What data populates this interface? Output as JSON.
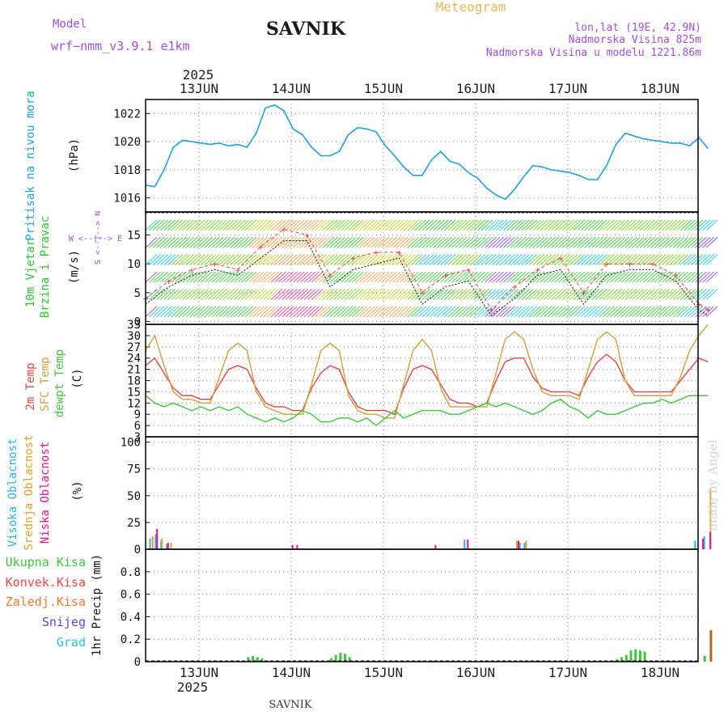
{
  "header": {
    "model_label": "Model",
    "model_name": "wrf−nmm_v3.9.1  e1km",
    "station": "SAVNIK",
    "product": "Meteogram",
    "lonlat": "lon,lat (19E, 42.9N)",
    "elevation": "Nadmorska Visina 825m",
    "model_elevation": "Nadmorska Visina u modelu 1221.86m",
    "credit": "made by Angel",
    "footer_station": "SAVNIK"
  },
  "time_axis": {
    "year": "2025",
    "days": [
      "13JUN",
      "14JUN",
      "15JUN",
      "16JUN",
      "17JUN",
      "18JUN"
    ]
  },
  "colors": {
    "pressure": "#1ea0dc",
    "temp2m": "#e64646",
    "sfc": "#d2a03c",
    "dewpt": "#3cc83c",
    "high_cloud": "#28b4e6",
    "mid_cloud": "#e6a028",
    "low_cloud": "#e6148c",
    "total_precip": "#3cc83c",
    "conv_precip": "#f04646",
    "frozen": "#f07832",
    "snow": "#5a46e6",
    "graupel": "#28c8c8",
    "wind_label": "#2ec42e",
    "wind_dir_label": "#a050dc"
  },
  "chart_data": [
    {
      "panel": "pressure",
      "type": "line",
      "ylabel_main": "Pritisak na nivou mora",
      "unit": "(hPa)",
      "ylim": [
        1015,
        1023
      ],
      "yticks": [
        1016,
        1018,
        1020,
        1022
      ],
      "grid": true,
      "series": [
        {
          "x": [
            0,
            0.1,
            0.2,
            0.3,
            0.4,
            0.5,
            0.6,
            0.7,
            0.8,
            0.9,
            1.0,
            1.1,
            1.2,
            1.3,
            1.4,
            1.5,
            1.6,
            1.7,
            1.8,
            1.9,
            2.0,
            2.1,
            2.2,
            2.3,
            2.4,
            2.5,
            2.6,
            2.7,
            2.8,
            2.9,
            3.0,
            3.1,
            3.2,
            3.3,
            3.4,
            3.5,
            3.6,
            3.7,
            3.8,
            3.9,
            4.0,
            4.1,
            4.2,
            4.3,
            4.4,
            4.5,
            4.6,
            4.7,
            4.8,
            4.9,
            5.0,
            5.1,
            5.2,
            5.3,
            5.4,
            5.5,
            5.6,
            5.7,
            5.8,
            5.9,
            6.0,
            6.1
          ],
          "values": [
            1016.9,
            1016.8,
            1018.0,
            1019.6,
            1020.1,
            1020.0,
            1019.9,
            1019.8,
            1019.9,
            1019.7,
            1019.8,
            1019.6,
            1020.6,
            1022.4,
            1022.6,
            1022.2,
            1020.9,
            1020.5,
            1019.6,
            1019.0,
            1019.0,
            1019.3,
            1020.5,
            1021.0,
            1020.9,
            1020.7,
            1019.7,
            1019.0,
            1018.2,
            1017.6,
            1017.6,
            1018.7,
            1019.3,
            1018.6,
            1018.4,
            1017.8,
            1017.4,
            1016.7,
            1016.2,
            1015.9,
            1016.6,
            1017.5,
            1018.3,
            1018.2,
            1018.0,
            1017.9,
            1017.8,
            1017.6,
            1017.3,
            1017.3,
            1018.3,
            1019.8,
            1020.6,
            1020.4,
            1020.2,
            1020.1,
            1020.0,
            1019.9,
            1019.9,
            1019.7,
            1020.3,
            1019.5
          ]
        }
      ]
    },
    {
      "panel": "wind",
      "type": "line",
      "ylabel_main": "10m Vjetar",
      "ylabel_sub": "Brzina i Pravac",
      "unit": "(m/s)",
      "direction_key": "W  <--|-->  E",
      "direction_key_vertical": "S <--|--> N",
      "ylim": [
        -0.5,
        19
      ],
      "yticks": [
        0,
        5,
        10,
        15
      ],
      "grid": true,
      "series": [
        {
          "name": "wind speed",
          "x": [
            0,
            0.25,
            0.5,
            0.75,
            1.0,
            1.25,
            1.5,
            1.75,
            2.0,
            2.25,
            2.5,
            2.75,
            3.0,
            3.25,
            3.5,
            3.75,
            4.0,
            4.25,
            4.5,
            4.75,
            5.0,
            5.25,
            5.5,
            5.75,
            6.0,
            6.1
          ],
          "values": [
            3,
            6,
            8,
            9,
            8,
            11,
            14,
            14,
            6,
            9,
            10,
            11,
            3,
            6,
            7,
            1,
            4,
            8,
            9,
            3,
            8,
            9,
            9,
            7,
            2,
            1
          ]
        },
        {
          "name": "wind gust",
          "x": [
            0,
            0.25,
            0.5,
            0.75,
            1.0,
            1.25,
            1.5,
            1.75,
            2.0,
            2.25,
            2.5,
            2.75,
            3.0,
            3.25,
            3.5,
            3.75,
            4.0,
            4.25,
            4.5,
            4.75,
            5.0,
            5.25,
            5.5,
            5.75,
            6.0,
            6.1
          ],
          "values": [
            4,
            7,
            9,
            10,
            9,
            13,
            16,
            15,
            8,
            11,
            12,
            12,
            5,
            8,
            9,
            2,
            6,
            9,
            11,
            5,
            10,
            10,
            10,
            8,
            3,
            2
          ]
        }
      ]
    },
    {
      "panel": "temperature",
      "type": "line",
      "ylabels": [
        "2m Temp",
        "SFC Temp",
        "dewpt Temp"
      ],
      "unit": "(C)",
      "ylim": [
        3,
        33
      ],
      "yticks": [
        3,
        6,
        9,
        12,
        15,
        18,
        21,
        24,
        27,
        30,
        33
      ],
      "grid": true,
      "series": [
        {
          "name": "2m Temp",
          "x": [
            0,
            0.1,
            0.2,
            0.3,
            0.4,
            0.5,
            0.6,
            0.7,
            0.8,
            0.9,
            1.0,
            1.1,
            1.2,
            1.3,
            1.4,
            1.5,
            1.6,
            1.7,
            1.8,
            1.9,
            2.0,
            2.1,
            2.2,
            2.3,
            2.4,
            2.5,
            2.6,
            2.7,
            2.8,
            2.9,
            3.0,
            3.1,
            3.2,
            3.3,
            3.4,
            3.5,
            3.6,
            3.7,
            3.8,
            3.9,
            4.0,
            4.1,
            4.2,
            4.3,
            4.4,
            4.5,
            4.6,
            4.7,
            4.8,
            4.9,
            5.0,
            5.1,
            5.2,
            5.3,
            5.4,
            5.5,
            5.6,
            5.7,
            5.8,
            5.9,
            6.0,
            6.1
          ],
          "values": [
            22,
            24,
            20,
            16,
            14,
            14,
            13,
            13,
            17,
            21,
            22,
            21,
            16,
            12,
            11,
            11,
            10,
            10,
            16,
            20,
            22,
            21,
            15,
            11,
            10,
            10,
            10,
            9,
            16,
            21,
            22,
            21,
            17,
            13,
            12,
            12,
            11,
            12,
            18,
            23,
            24,
            24,
            19,
            16,
            15,
            15,
            15,
            14,
            19,
            23,
            25,
            23,
            18,
            15,
            15,
            15,
            15,
            15,
            18,
            21,
            24,
            23
          ]
        },
        {
          "name": "SFC Temp",
          "x": [
            0,
            0.1,
            0.2,
            0.3,
            0.4,
            0.5,
            0.6,
            0.7,
            0.8,
            0.9,
            1.0,
            1.1,
            1.2,
            1.3,
            1.4,
            1.5,
            1.6,
            1.7,
            1.8,
            1.9,
            2.0,
            2.1,
            2.2,
            2.3,
            2.4,
            2.5,
            2.6,
            2.7,
            2.8,
            2.9,
            3.0,
            3.1,
            3.2,
            3.3,
            3.4,
            3.5,
            3.6,
            3.7,
            3.8,
            3.9,
            4.0,
            4.1,
            4.2,
            4.3,
            4.4,
            4.5,
            4.6,
            4.7,
            4.8,
            4.9,
            5.0,
            5.1,
            5.2,
            5.3,
            5.4,
            5.5,
            5.6,
            5.7,
            5.8,
            5.9,
            6.0,
            6.1
          ],
          "values": [
            26,
            30,
            22,
            15,
            13,
            13,
            12,
            12,
            19,
            26,
            28,
            26,
            15,
            11,
            10,
            9,
            9,
            9,
            17,
            26,
            28,
            26,
            14,
            10,
            9,
            9,
            8,
            8,
            17,
            26,
            29,
            26,
            16,
            11,
            11,
            11,
            11,
            11,
            20,
            29,
            31,
            29,
            21,
            15,
            14,
            14,
            14,
            13,
            21,
            29,
            31,
            29,
            18,
            14,
            14,
            14,
            14,
            14,
            19,
            26,
            30,
            33
          ]
        },
        {
          "name": "dewpt Temp",
          "x": [
            0,
            0.1,
            0.2,
            0.3,
            0.4,
            0.5,
            0.6,
            0.7,
            0.8,
            0.9,
            1.0,
            1.1,
            1.2,
            1.3,
            1.4,
            1.5,
            1.6,
            1.7,
            1.8,
            1.9,
            2.0,
            2.1,
            2.2,
            2.3,
            2.4,
            2.5,
            2.6,
            2.7,
            2.8,
            2.9,
            3.0,
            3.1,
            3.2,
            3.3,
            3.4,
            3.5,
            3.6,
            3.7,
            3.8,
            3.9,
            4.0,
            4.1,
            4.2,
            4.3,
            4.4,
            4.5,
            4.6,
            4.7,
            4.8,
            4.9,
            5.0,
            5.1,
            5.2,
            5.3,
            5.4,
            5.5,
            5.6,
            5.7,
            5.8,
            5.9,
            6.0,
            6.1
          ],
          "values": [
            14,
            12,
            11,
            12,
            11,
            10,
            11,
            10,
            11,
            10,
            11,
            9,
            8,
            7,
            8,
            7,
            8,
            10,
            9,
            7,
            7,
            8,
            8,
            7,
            8,
            6,
            8,
            10,
            8,
            9,
            10,
            10,
            10,
            9,
            9,
            10,
            11,
            12,
            11,
            12,
            11,
            10,
            9,
            10,
            12,
            13,
            11,
            10,
            8,
            10,
            9,
            9,
            10,
            11,
            12,
            12,
            13,
            12,
            13,
            14,
            14,
            14
          ]
        }
      ]
    },
    {
      "panel": "cloud_cover",
      "type": "bar",
      "ylabels": [
        "Visoka Oblacnost",
        "Srednja Oblacnost",
        "Niska Oblacnost"
      ],
      "unit": "(%)",
      "ylim": [
        0,
        105
      ],
      "yticks": [
        0,
        25,
        50,
        75,
        100
      ],
      "grid": true,
      "series": [
        {
          "name": "Visoka Oblacnost",
          "x": [
            0.04,
            0.1,
            0.16,
            0.22,
            3.45,
            4.05,
            4.1,
            5.95,
            6.05
          ],
          "values": [
            10,
            14,
            8,
            5,
            9,
            6,
            6,
            8,
            12
          ]
        },
        {
          "name": "Srednja Oblacnost",
          "x": [
            0.05,
            0.15,
            0.25,
            4.0,
            4.1,
            6.1
          ],
          "values": [
            12,
            10,
            6,
            8,
            8,
            57
          ]
        },
        {
          "name": "Niska Oblacnost",
          "x": [
            0.08,
            0.2,
            1.55,
            1.6,
            3.1,
            3.45,
            4.0,
            6.0,
            6.08
          ],
          "values": [
            19,
            6,
            4,
            4,
            4,
            9,
            8,
            10,
            16
          ]
        }
      ]
    },
    {
      "panel": "precipitation",
      "type": "bar",
      "ylabels": [
        "Ukupna Kisa",
        "Konvek.Kisa",
        "Zaledj.Kisa",
        "Snijeg",
        "Grad"
      ],
      "unit": "1hr Precip (mm)",
      "ylim": [
        0,
        1.0
      ],
      "yticks": [
        0,
        0.2,
        0.4,
        0.6,
        0.8
      ],
      "grid": true,
      "series": [
        {
          "name": "Ukupna Kisa",
          "x": [
            1.1,
            1.15,
            1.2,
            1.25,
            2.0,
            2.05,
            2.1,
            2.15,
            2.2,
            3.1,
            5.05,
            5.1,
            5.15,
            5.2,
            5.25,
            5.3,
            5.35,
            5.4,
            6.05
          ],
          "values": [
            0.04,
            0.05,
            0.04,
            0.03,
            0.03,
            0.06,
            0.08,
            0.07,
            0.04,
            0.01,
            0.01,
            0.02,
            0.04,
            0.06,
            0.1,
            0.11,
            0.1,
            0.09,
            0.05
          ]
        },
        {
          "name": "Konvek.Kisa",
          "x": [
            6.1
          ],
          "values": [
            0.28
          ]
        }
      ]
    }
  ]
}
